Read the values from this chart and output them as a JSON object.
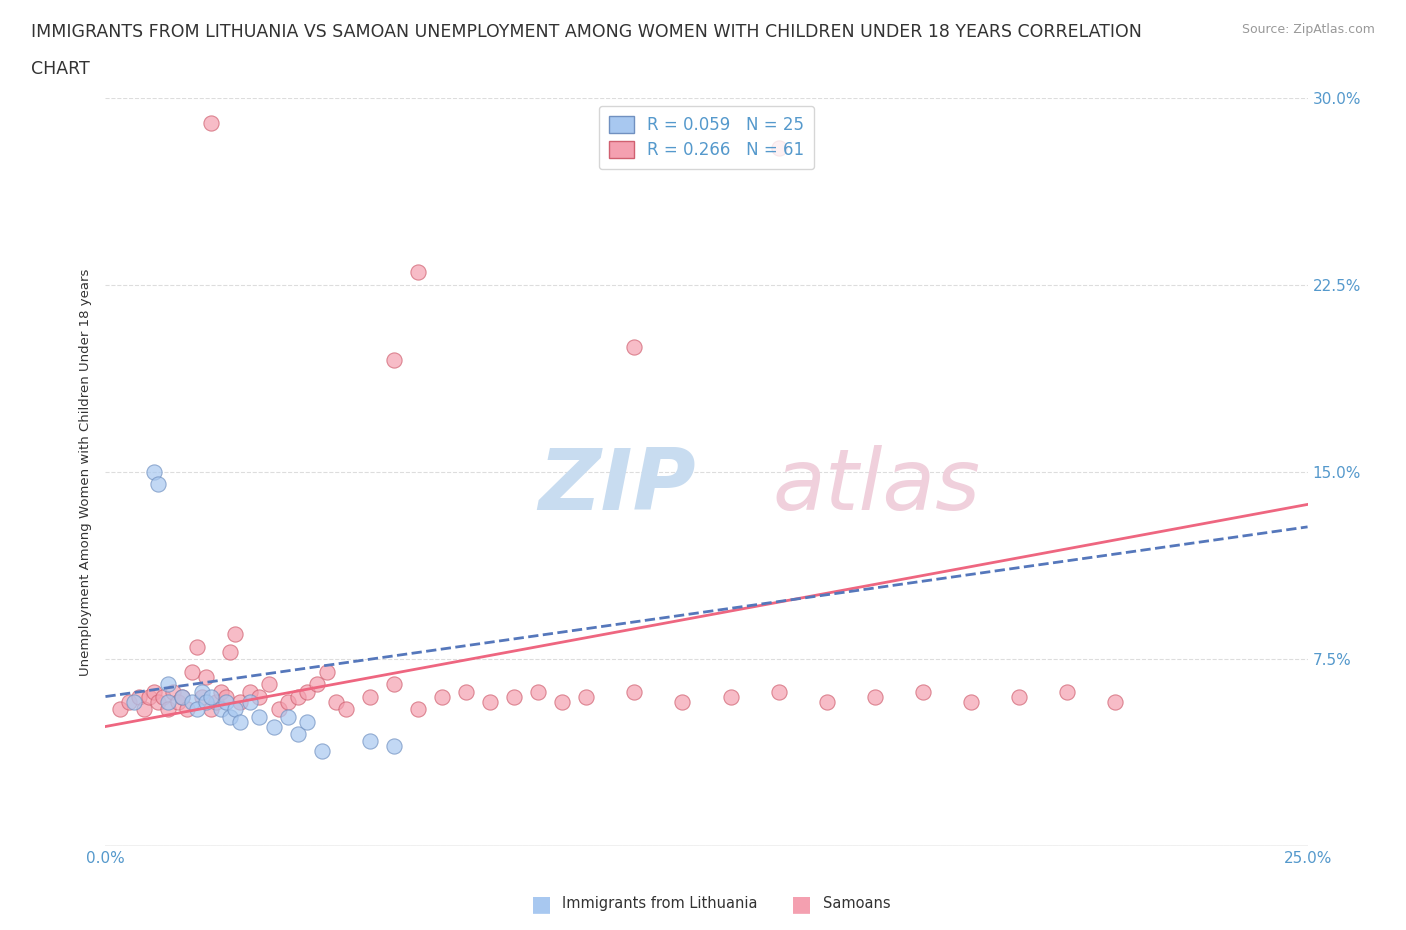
{
  "title_line1": "IMMIGRANTS FROM LITHUANIA VS SAMOAN UNEMPLOYMENT AMONG WOMEN WITH CHILDREN UNDER 18 YEARS CORRELATION",
  "title_line2": "CHART",
  "source": "Source: ZipAtlas.com",
  "ylabel": "Unemployment Among Women with Children Under 18 years",
  "xlim": [
    0.0,
    0.25
  ],
  "ylim": [
    -0.02,
    0.32
  ],
  "plot_ylim": [
    0.0,
    0.3
  ],
  "xticks": [
    0.0,
    0.05,
    0.1,
    0.15,
    0.2,
    0.25
  ],
  "yticks": [
    0.0,
    0.075,
    0.15,
    0.225,
    0.3
  ],
  "xticklabels": [
    "0.0%",
    "",
    "",
    "",
    "",
    "25.0%"
  ],
  "yticklabels": [
    "",
    "7.5%",
    "15.0%",
    "22.5%",
    "30.0%"
  ],
  "legend_entries": [
    {
      "label": "R = 0.059   N = 25",
      "color": "#A8C8F0"
    },
    {
      "label": "R = 0.266   N = 61",
      "color": "#F4A0B0"
    }
  ],
  "scatter_lithuania": {
    "color": "#A8C8F0",
    "edge_color": "#7090C0",
    "x": [
      0.006,
      0.01,
      0.011,
      0.013,
      0.013,
      0.016,
      0.018,
      0.019,
      0.02,
      0.021,
      0.022,
      0.024,
      0.025,
      0.026,
      0.027,
      0.028,
      0.03,
      0.032,
      0.035,
      0.038,
      0.04,
      0.042,
      0.045,
      0.055,
      0.06
    ],
    "y": [
      0.058,
      0.15,
      0.145,
      0.065,
      0.058,
      0.06,
      0.058,
      0.055,
      0.062,
      0.058,
      0.06,
      0.055,
      0.058,
      0.052,
      0.055,
      0.05,
      0.058,
      0.052,
      0.048,
      0.052,
      0.045,
      0.05,
      0.038,
      0.042,
      0.04
    ]
  },
  "scatter_samoans": {
    "color": "#F4A0B0",
    "edge_color": "#D06070",
    "x": [
      0.003,
      0.005,
      0.007,
      0.008,
      0.009,
      0.01,
      0.011,
      0.012,
      0.013,
      0.014,
      0.015,
      0.016,
      0.017,
      0.018,
      0.019,
      0.02,
      0.021,
      0.022,
      0.023,
      0.024,
      0.025,
      0.026,
      0.027,
      0.028,
      0.03,
      0.032,
      0.034,
      0.036,
      0.038,
      0.04,
      0.042,
      0.044,
      0.046,
      0.048,
      0.05,
      0.055,
      0.06,
      0.065,
      0.07,
      0.075,
      0.08,
      0.085,
      0.09,
      0.095,
      0.1,
      0.11,
      0.12,
      0.13,
      0.14,
      0.15,
      0.16,
      0.17,
      0.18,
      0.19,
      0.2,
      0.21,
      0.06,
      0.065,
      0.11,
      0.14,
      0.022
    ],
    "y": [
      0.055,
      0.058,
      0.06,
      0.055,
      0.06,
      0.062,
      0.058,
      0.06,
      0.055,
      0.062,
      0.058,
      0.06,
      0.055,
      0.07,
      0.08,
      0.06,
      0.068,
      0.055,
      0.058,
      0.062,
      0.06,
      0.078,
      0.085,
      0.058,
      0.062,
      0.06,
      0.065,
      0.055,
      0.058,
      0.06,
      0.062,
      0.065,
      0.07,
      0.058,
      0.055,
      0.06,
      0.065,
      0.055,
      0.06,
      0.062,
      0.058,
      0.06,
      0.062,
      0.058,
      0.06,
      0.062,
      0.058,
      0.06,
      0.062,
      0.058,
      0.06,
      0.062,
      0.058,
      0.06,
      0.062,
      0.058,
      0.195,
      0.23,
      0.2,
      0.28,
      0.29
    ]
  },
  "trend_lithuania": {
    "color": "#5577BB",
    "x_start": 0.0,
    "x_end": 0.25,
    "y_start": 0.06,
    "y_end": 0.128,
    "linestyle": "dashed",
    "linewidth": 2.0
  },
  "trend_samoans": {
    "color": "#EE6680",
    "x_start": 0.0,
    "x_end": 0.25,
    "y_start": 0.048,
    "y_end": 0.137,
    "linestyle": "solid",
    "linewidth": 2.0
  },
  "background_color": "#FFFFFF",
  "grid_color": "#DDDDDD",
  "grid_style": "dashed",
  "axis_color": "#5599CC",
  "title_color": "#333333",
  "source_color": "#999999",
  "title_fontsize": 12.5,
  "axis_label_fontsize": 9.5,
  "tick_fontsize": 11,
  "scatter_size": 120,
  "scatter_alpha": 0.7
}
